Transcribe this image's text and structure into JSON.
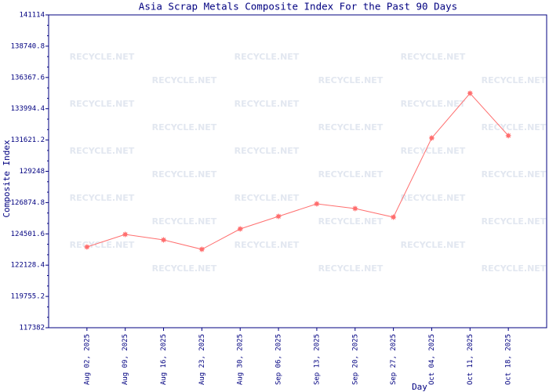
{
  "chart_data": {
    "type": "line",
    "title": "Asia Scrap Metals Composite Index For the Past 90 Days",
    "watermark": "RECYCLE.NET",
    "x_label": "Day",
    "y_label": "Composite Index",
    "categories": [
      "Aug 02, 2025",
      "Aug 09, 2025",
      "Aug 16, 2025",
      "Aug 23, 2025",
      "Aug 30, 2025",
      "Sep 06, 2025",
      "Sep 13, 2025",
      "Sep 20, 2025",
      "Sep 27, 2025",
      "Oct 04, 2025",
      "Oct 11, 2025",
      "Oct 18, 2025"
    ],
    "values": [
      123508,
      124460,
      124043,
      123329,
      124876,
      125828,
      126779,
      126422,
      125768,
      131776,
      135166,
      131954
    ],
    "color": "#ff6f6f",
    "axis_color": "#000080",
    "ylim": [
      117382,
      141114
    ],
    "yticks": [
      117382,
      119755.2,
      122128.4,
      124501.6,
      126874.8,
      129248,
      131621.2,
      133994.4,
      136367.6,
      138740.8,
      141114
    ]
  }
}
